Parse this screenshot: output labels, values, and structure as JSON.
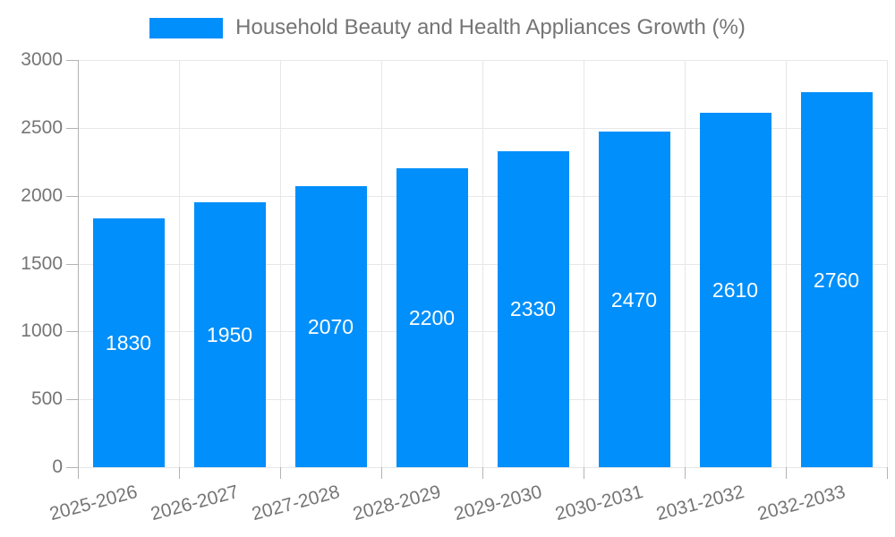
{
  "chart_data": {
    "type": "bar",
    "title": "Household Beauty and Health Appliances Growth (%)",
    "legend": {
      "position": "top",
      "series_label": "Household Beauty and Health Appliances Growth (%)"
    },
    "categories": [
      "2025-2026",
      "2026-2027",
      "2027-2028",
      "2028-2029",
      "2029-2030",
      "2030-2031",
      "2031-2032",
      "2032-2033"
    ],
    "values": [
      1830,
      1950,
      2070,
      2200,
      2330,
      2470,
      2610,
      2760
    ],
    "xlabel": "",
    "ylabel": "",
    "ylim": [
      0,
      3000
    ],
    "yticks": [
      0,
      500,
      1000,
      1500,
      2000,
      2500,
      3000
    ],
    "grid": true,
    "x_label_rotation_deg": -15,
    "colors": {
      "bar": "#008ffb",
      "bar_label_text": "#ffffff",
      "axis_text": "#757575",
      "gridline": "#e7e7e7",
      "axis_line": "#b3b3b3",
      "background": "#ffffff"
    }
  }
}
